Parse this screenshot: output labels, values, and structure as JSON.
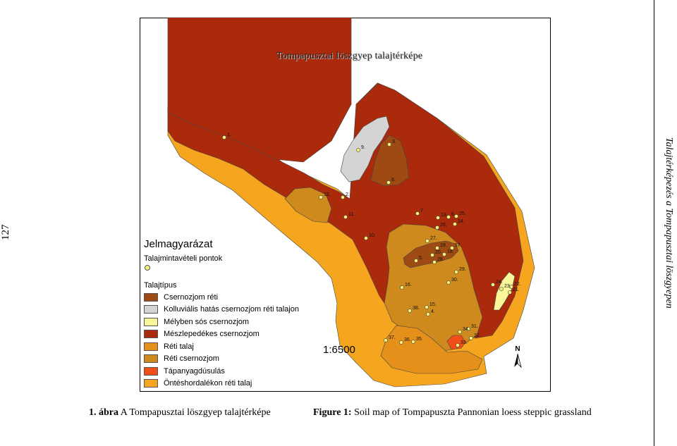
{
  "page_number": "127",
  "running_head": "Talajtérképezés a Tompapusztai löszgyepen",
  "map": {
    "title": "Tompapusztai löszgyep  talajtérképe",
    "scale": "1:6500",
    "north_label": "N",
    "legend": {
      "heading": "Jelmagyarázat",
      "points_heading": "Talajmintavételi pontok",
      "types_heading": "Talajtípus",
      "items": [
        {
          "label": "Csernozjom réti",
          "color": "#9e4a12"
        },
        {
          "label": "Kolluviális hatás csernozjom réti talajon",
          "color": "#d4d4d4"
        },
        {
          "label": "Mélyben sós csernozjom",
          "color": "#f9f69a"
        },
        {
          "label": "Mészlepedékes csernozjom",
          "color": "#ab2a0c"
        },
        {
          "label": "Réti talaj",
          "color": "#e6901c"
        },
        {
          "label": "Réti csernozjom",
          "color": "#cf8a1d"
        },
        {
          "label": "Tápanyagdúsulás",
          "color": "#f24e18"
        },
        {
          "label": "Öntéshordalékon réti talaj",
          "color": "#f6a61e"
        }
      ]
    },
    "sample_points": [
      "1.",
      "2.",
      "3.",
      "4.",
      "5.",
      "6.",
      "7.",
      "8.",
      "9.",
      "10.",
      "11.",
      "12.",
      "13.",
      "14.",
      "15.",
      "16.",
      "17.",
      "18.",
      "19.",
      "20.",
      "21.",
      "22.",
      "23.",
      "24.",
      "25.",
      "26.",
      "27.",
      "28.",
      "29.",
      "30.",
      "31.",
      "32.",
      "33.",
      "34.",
      "35.",
      "36.",
      "37.",
      "38."
    ]
  },
  "caption": {
    "hu_prefix": "1. ábra",
    "hu_text": " A Tompapusztai löszgyep talajtérképe",
    "en_prefix": "Figure 1:",
    "en_text": " Soil map of Tompapuszta Pannonian loess steppic grassland"
  }
}
